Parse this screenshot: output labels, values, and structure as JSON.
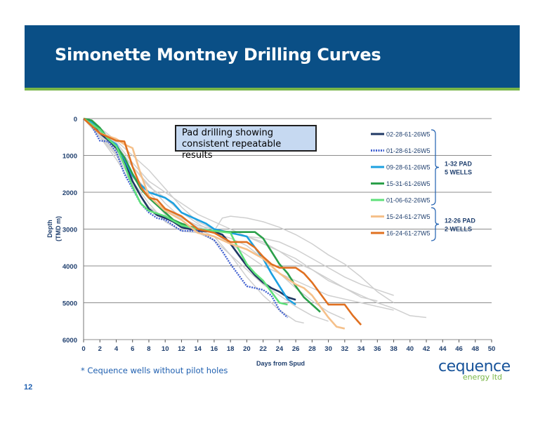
{
  "slide": {
    "title": "Simonette Montney Drilling Curves",
    "callout": "Pad drilling showing consistent repeatable results",
    "footnote": "* Cequence wells without pilot holes",
    "page_number": "12",
    "logo_top": "cequence",
    "logo_bottom": "energy ltd",
    "colors": {
      "title_band": "#0a4f86",
      "rule": "#7ab648"
    }
  },
  "chart_data": {
    "type": "line",
    "title": "",
    "xlabel": "Days from Spud",
    "ylabel_line1": "Depth",
    "ylabel_line2": "(TMD m)",
    "xlim": [
      0,
      50
    ],
    "ylim": [
      6000,
      0
    ],
    "y_inverted": true,
    "grid": "horizontal",
    "x_ticks": [
      "0",
      "2",
      "4",
      "6",
      "8",
      "10",
      "12",
      "14",
      "16",
      "18",
      "20",
      "22",
      "24",
      "26",
      "28",
      "30",
      "32",
      "34",
      "36",
      "38",
      "40",
      "42",
      "44",
      "46",
      "48",
      "50"
    ],
    "y_ticks": [
      "0",
      "1000",
      "2000",
      "3000",
      "4000",
      "5000",
      "6000"
    ],
    "legend_position": "right",
    "groups": [
      {
        "label_line1": "1-32 PAD",
        "label_line2": "5 WELLS",
        "members": [
          "02-28-61-26W5",
          "01-28-61-26W5",
          "09-28-61-26W5",
          "15-31-61-26W5",
          "01-06-62-26W5"
        ]
      },
      {
        "label_line1": "12-26 PAD",
        "label_line2": "2 WELLS",
        "members": [
          "15-24-61-27W5",
          "16-24-61-27W5"
        ]
      }
    ],
    "series": [
      {
        "name": "02-28-61-26W5",
        "color": "#1f3864",
        "dash": "solid",
        "x": [
          0,
          1,
          2,
          3,
          4,
          5,
          6,
          7,
          8,
          9,
          10,
          11,
          12,
          14,
          16,
          17,
          18,
          19,
          20,
          21,
          22,
          23,
          24,
          25,
          26
        ],
        "y": [
          0,
          150,
          400,
          580,
          800,
          1150,
          1700,
          2100,
          2450,
          2620,
          2700,
          2800,
          2950,
          3050,
          3070,
          3150,
          3400,
          3700,
          4000,
          4250,
          4450,
          4600,
          4700,
          4850,
          4920
        ]
      },
      {
        "name": "01-28-61-26W5",
        "color": "#4060d0",
        "dash": "dotted",
        "x": [
          0,
          1,
          2,
          3,
          4,
          5,
          6,
          7,
          8,
          9,
          10,
          11,
          12,
          14,
          16,
          17,
          18,
          19,
          20,
          21,
          22,
          23,
          24,
          25
        ],
        "y": [
          0,
          200,
          600,
          620,
          900,
          1500,
          1900,
          2300,
          2550,
          2700,
          2750,
          2900,
          3050,
          3050,
          3300,
          3600,
          3950,
          4250,
          4550,
          4600,
          4650,
          4800,
          5200,
          5400
        ]
      },
      {
        "name": "09-28-61-26W5",
        "color": "#1ca0e0",
        "dash": "solid",
        "x": [
          0,
          1,
          2,
          3,
          4,
          5,
          6,
          7,
          8,
          10,
          11,
          12,
          14,
          15,
          16,
          17,
          18,
          19,
          20,
          21,
          22,
          23,
          24,
          25,
          26
        ],
        "y": [
          0,
          100,
          300,
          550,
          700,
          1100,
          1550,
          1800,
          2000,
          2150,
          2300,
          2550,
          2750,
          2850,
          3000,
          3050,
          3100,
          3150,
          3200,
          3500,
          3800,
          4200,
          4550,
          4900,
          5050
        ]
      },
      {
        "name": "15-31-61-26W5",
        "color": "#2ba04a",
        "dash": "solid",
        "x": [
          0,
          1,
          2,
          3,
          4,
          5,
          6,
          7,
          8,
          10,
          11,
          12,
          14,
          16,
          18,
          19,
          20,
          21,
          22,
          23,
          24,
          25,
          26,
          27,
          28,
          29
        ],
        "y": [
          0,
          50,
          250,
          550,
          750,
          1050,
          1500,
          1900,
          2150,
          2550,
          2750,
          2850,
          3000,
          3050,
          3080,
          3080,
          3080,
          3080,
          3250,
          3600,
          3950,
          4200,
          4550,
          4850,
          5050,
          5250
        ]
      },
      {
        "name": "01-06-62-26W5",
        "color": "#5ee07a",
        "dash": "solid",
        "x": [
          0,
          1,
          2,
          3,
          4,
          5,
          6,
          7,
          8,
          10,
          12,
          14,
          16,
          18,
          19,
          20,
          21,
          22,
          23,
          24,
          25
        ],
        "y": [
          0,
          150,
          300,
          550,
          750,
          1250,
          1850,
          2300,
          2500,
          2650,
          2900,
          3000,
          3050,
          3100,
          3550,
          3950,
          4200,
          4400,
          4700,
          5000,
          5050
        ]
      },
      {
        "name": "15-24-61-27W5",
        "color": "#f5c08a",
        "dash": "solid",
        "x": [
          0,
          2,
          4,
          5,
          6,
          7,
          8,
          10,
          12,
          14,
          16,
          18,
          20,
          22,
          24,
          26,
          27,
          28,
          29,
          30,
          31,
          32
        ],
        "y": [
          0,
          400,
          550,
          700,
          800,
          1500,
          2100,
          2500,
          2750,
          3100,
          3200,
          3400,
          3550,
          3800,
          4200,
          4500,
          4600,
          4800,
          5100,
          5400,
          5650,
          5700
        ]
      },
      {
        "name": "16-24-61-27W5",
        "color": "#e07020",
        "dash": "solid",
        "x": [
          0,
          2,
          4,
          5,
          6,
          7,
          8,
          9,
          10,
          12,
          14,
          16,
          18,
          20,
          21,
          22,
          23,
          24,
          25,
          26,
          27,
          28,
          29,
          30,
          31,
          32,
          33,
          34
        ],
        "y": [
          0,
          400,
          600,
          620,
          1300,
          1850,
          2150,
          2200,
          2450,
          2650,
          3000,
          3100,
          3350,
          3350,
          3500,
          3750,
          3950,
          4050,
          4050,
          4050,
          4200,
          4450,
          4750,
          5050,
          5050,
          5050,
          5350,
          5600
        ]
      }
    ],
    "reference_wells": [
      {
        "x": [
          0,
          2,
          4,
          6,
          8,
          10,
          12,
          14,
          16,
          18,
          20,
          22,
          24,
          26,
          28,
          30,
          32,
          34,
          36,
          38
        ],
        "y": [
          0,
          350,
          700,
          1300,
          1850,
          2150,
          2550,
          2850,
          3100,
          3400,
          3700,
          4000,
          4200,
          4400,
          4600,
          4800,
          4900,
          5000,
          5100,
          5200
        ]
      },
      {
        "x": [
          0,
          2,
          4,
          6,
          8,
          10,
          12,
          14,
          16,
          18,
          20,
          22,
          24,
          26,
          28,
          30,
          32,
          34,
          36,
          38,
          40,
          42
        ],
        "y": [
          0,
          300,
          650,
          1200,
          1700,
          2000,
          2300,
          2600,
          2800,
          3000,
          3200,
          3400,
          3600,
          3900,
          4100,
          4350,
          4600,
          4800,
          5000,
          5150,
          5350,
          5400
        ]
      },
      {
        "x": [
          0,
          2,
          4,
          6,
          8,
          10,
          12,
          14,
          16,
          18,
          20,
          22,
          24,
          26,
          28,
          30
        ],
        "y": [
          0,
          500,
          1000,
          1700,
          2300,
          2800,
          3050,
          3100,
          3300,
          3700,
          4100,
          4500,
          4800,
          5100,
          5350,
          5500
        ]
      },
      {
        "x": [
          0,
          2,
          4,
          6,
          8,
          10,
          12,
          14,
          16,
          18,
          20,
          22,
          24,
          26,
          28,
          30,
          32,
          34,
          36
        ],
        "y": [
          0,
          400,
          900,
          1500,
          2000,
          2450,
          2700,
          2900,
          3000,
          3100,
          3200,
          3350,
          3600,
          3800,
          4100,
          4400,
          4600,
          4850,
          4950
        ]
      },
      {
        "x": [
          0,
          2,
          4,
          6,
          8,
          10,
          12,
          14,
          16,
          17,
          18,
          20,
          22,
          24,
          26,
          28,
          30,
          32,
          34,
          36,
          38
        ],
        "y": [
          0,
          300,
          800,
          1300,
          1800,
          2300,
          2700,
          2950,
          3050,
          2700,
          2650,
          2700,
          2800,
          2950,
          3150,
          3400,
          3700,
          3950,
          4300,
          4700,
          5000
        ]
      },
      {
        "x": [
          0,
          2,
          4,
          6,
          8,
          10,
          12,
          14,
          16,
          18,
          20,
          22,
          24,
          26,
          28,
          30,
          32
        ],
        "y": [
          0,
          450,
          950,
          1600,
          2100,
          2600,
          2900,
          3000,
          3100,
          3250,
          3450,
          3800,
          4200,
          4600,
          4950,
          5250,
          5450
        ]
      },
      {
        "x": [
          0,
          2,
          4,
          6,
          8,
          10,
          12,
          14,
          16,
          18,
          20,
          22,
          24,
          26,
          27
        ],
        "y": [
          0,
          500,
          1100,
          1800,
          2400,
          2700,
          2850,
          3000,
          3200,
          3700,
          4300,
          4800,
          5200,
          5500,
          5550
        ]
      },
      {
        "x": [
          0,
          2,
          4,
          6,
          8,
          10,
          12,
          14,
          16,
          18,
          20,
          22,
          24,
          26,
          28,
          30,
          32,
          34,
          36,
          38
        ],
        "y": [
          0,
          250,
          600,
          1000,
          1400,
          1900,
          2400,
          2800,
          3000,
          3100,
          3200,
          3250,
          3350,
          3550,
          3800,
          4050,
          4300,
          4500,
          4650,
          4800
        ]
      }
    ]
  }
}
